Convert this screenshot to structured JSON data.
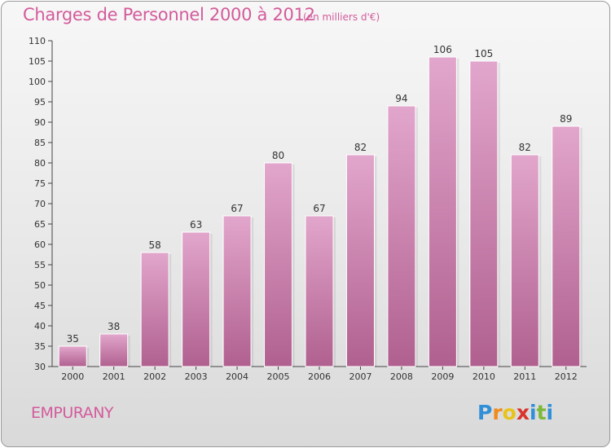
{
  "title": "Charges de Personnel 2000 à 2012",
  "subtitle": "(en milliers d'€)",
  "commune": "EMPURANY",
  "logo": {
    "letters": [
      "P",
      "r",
      "o",
      "x",
      "i",
      "t",
      "i"
    ],
    "colors": [
      "#2f8fd8",
      "#f08c1e",
      "#e8c31a",
      "#d9342b",
      "#2f8fd8",
      "#7cb83a",
      "#2f8fd8"
    ]
  },
  "colors": {
    "bar": "#c878a8",
    "bar_light": "#e2a6cc",
    "bar_dark": "#b0608f",
    "title": "#d35b9b"
  },
  "chart_data": {
    "type": "bar",
    "categories": [
      "2000",
      "2001",
      "2002",
      "2003",
      "2004",
      "2005",
      "2006",
      "2007",
      "2008",
      "2009",
      "2010",
      "2011",
      "2012"
    ],
    "values": [
      35,
      38,
      58,
      63,
      67,
      80,
      67,
      82,
      94,
      106,
      105,
      82,
      89
    ],
    "ylim": [
      30,
      110
    ],
    "yticks": [
      30,
      35,
      40,
      45,
      50,
      55,
      60,
      65,
      70,
      75,
      80,
      85,
      90,
      95,
      100,
      105,
      110
    ],
    "grid": false,
    "legend": "none"
  }
}
